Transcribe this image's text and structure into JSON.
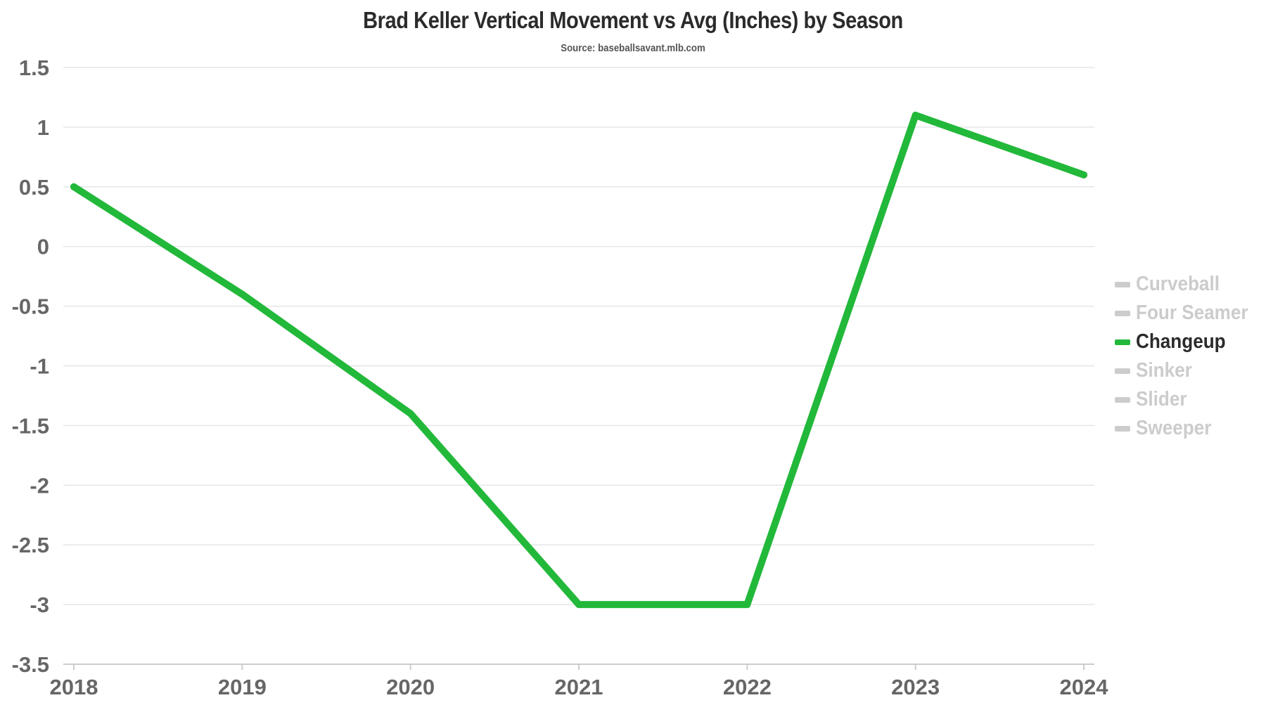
{
  "chart_data": {
    "type": "line",
    "title": "Brad Keller Vertical Movement vs Avg (Inches) by Season",
    "subtitle": "Source: baseballsavant.mlb.com",
    "xlabel": "",
    "ylabel": "",
    "categories": [
      "2018",
      "2019",
      "2020",
      "2021",
      "2022",
      "2023",
      "2024"
    ],
    "ylim": [
      -3.5,
      1.5
    ],
    "yticks": [
      1.5,
      1,
      0.5,
      0,
      -0.5,
      -1,
      -1.5,
      -2,
      -2.5,
      -3,
      -3.5
    ],
    "ytick_labels": [
      "1.5",
      "1",
      "0.5",
      "0",
      "-0.5",
      "-1",
      "-1.5",
      "-2",
      "-2.5",
      "-3",
      "-3.5"
    ],
    "grid": "horizontal",
    "legend_position": "right",
    "series": [
      {
        "name": "Changeup",
        "color": "#22b83a",
        "values": [
          0.5,
          -0.4,
          -1.4,
          -3.0,
          -3.0,
          1.1,
          0.6
        ]
      }
    ],
    "legend": [
      {
        "name": "Curveball",
        "color": "#cccccc",
        "active": false
      },
      {
        "name": "Four Seamer",
        "color": "#cccccc",
        "active": false
      },
      {
        "name": "Changeup",
        "color": "#22b83a",
        "active": true
      },
      {
        "name": "Sinker",
        "color": "#cccccc",
        "active": false
      },
      {
        "name": "Slider",
        "color": "#cccccc",
        "active": false
      },
      {
        "name": "Sweeper",
        "color": "#cccccc",
        "active": false
      }
    ],
    "colors": {
      "gridline": "#e6e6e6",
      "axis": "#cccccc",
      "tick_text": "#666666",
      "legend_active_text": "#2b2b2b",
      "legend_inactive_text": "#cccccc"
    }
  }
}
